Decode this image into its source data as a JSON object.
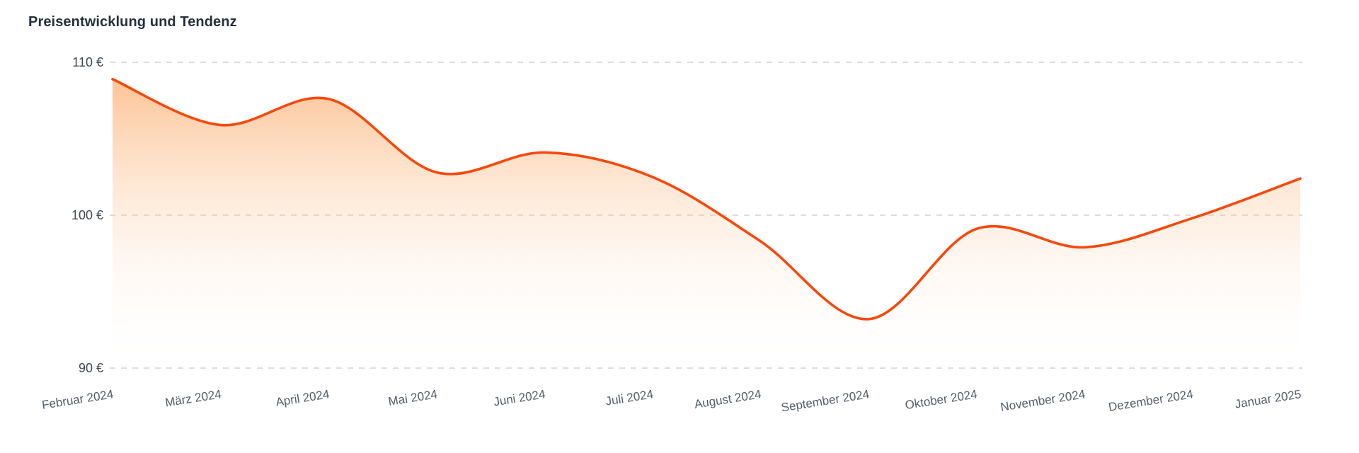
{
  "chart_data": {
    "type": "area",
    "title": "Preisentwicklung und Tendenz",
    "categories": [
      "Februar 2024",
      "März 2024",
      "April 2024",
      "Mai 2024",
      "Juni 2024",
      "Juli 2024",
      "August 2024",
      "September 2024",
      "Oktober 2024",
      "November 2024",
      "Dezember 2024",
      "Januar 2025"
    ],
    "values": [
      108.9,
      105.9,
      107.6,
      102.8,
      104.1,
      102.5,
      98.3,
      93.2,
      99.1,
      97.9,
      99.8,
      102.4
    ],
    "unit": "€",
    "ylim": [
      90,
      110
    ],
    "yticks": [
      {
        "value": 110,
        "label": "110 €"
      },
      {
        "value": 100,
        "label": "100 €"
      },
      {
        "value": 90,
        "label": "90 €"
      }
    ],
    "grid": "dashed-horizontal",
    "legend": "none",
    "smooth": true,
    "colors": {
      "line": "#f4490c",
      "area_top": "#f9882d",
      "area_top_opacity": 0.5,
      "area_bottom": "#ffffff",
      "area_bottom_opacity": 0,
      "grid": "#d2d2d2",
      "y_label": "#3f4750",
      "x_label": "#565d66",
      "title": "#25303c",
      "background": "#ffffff"
    }
  }
}
